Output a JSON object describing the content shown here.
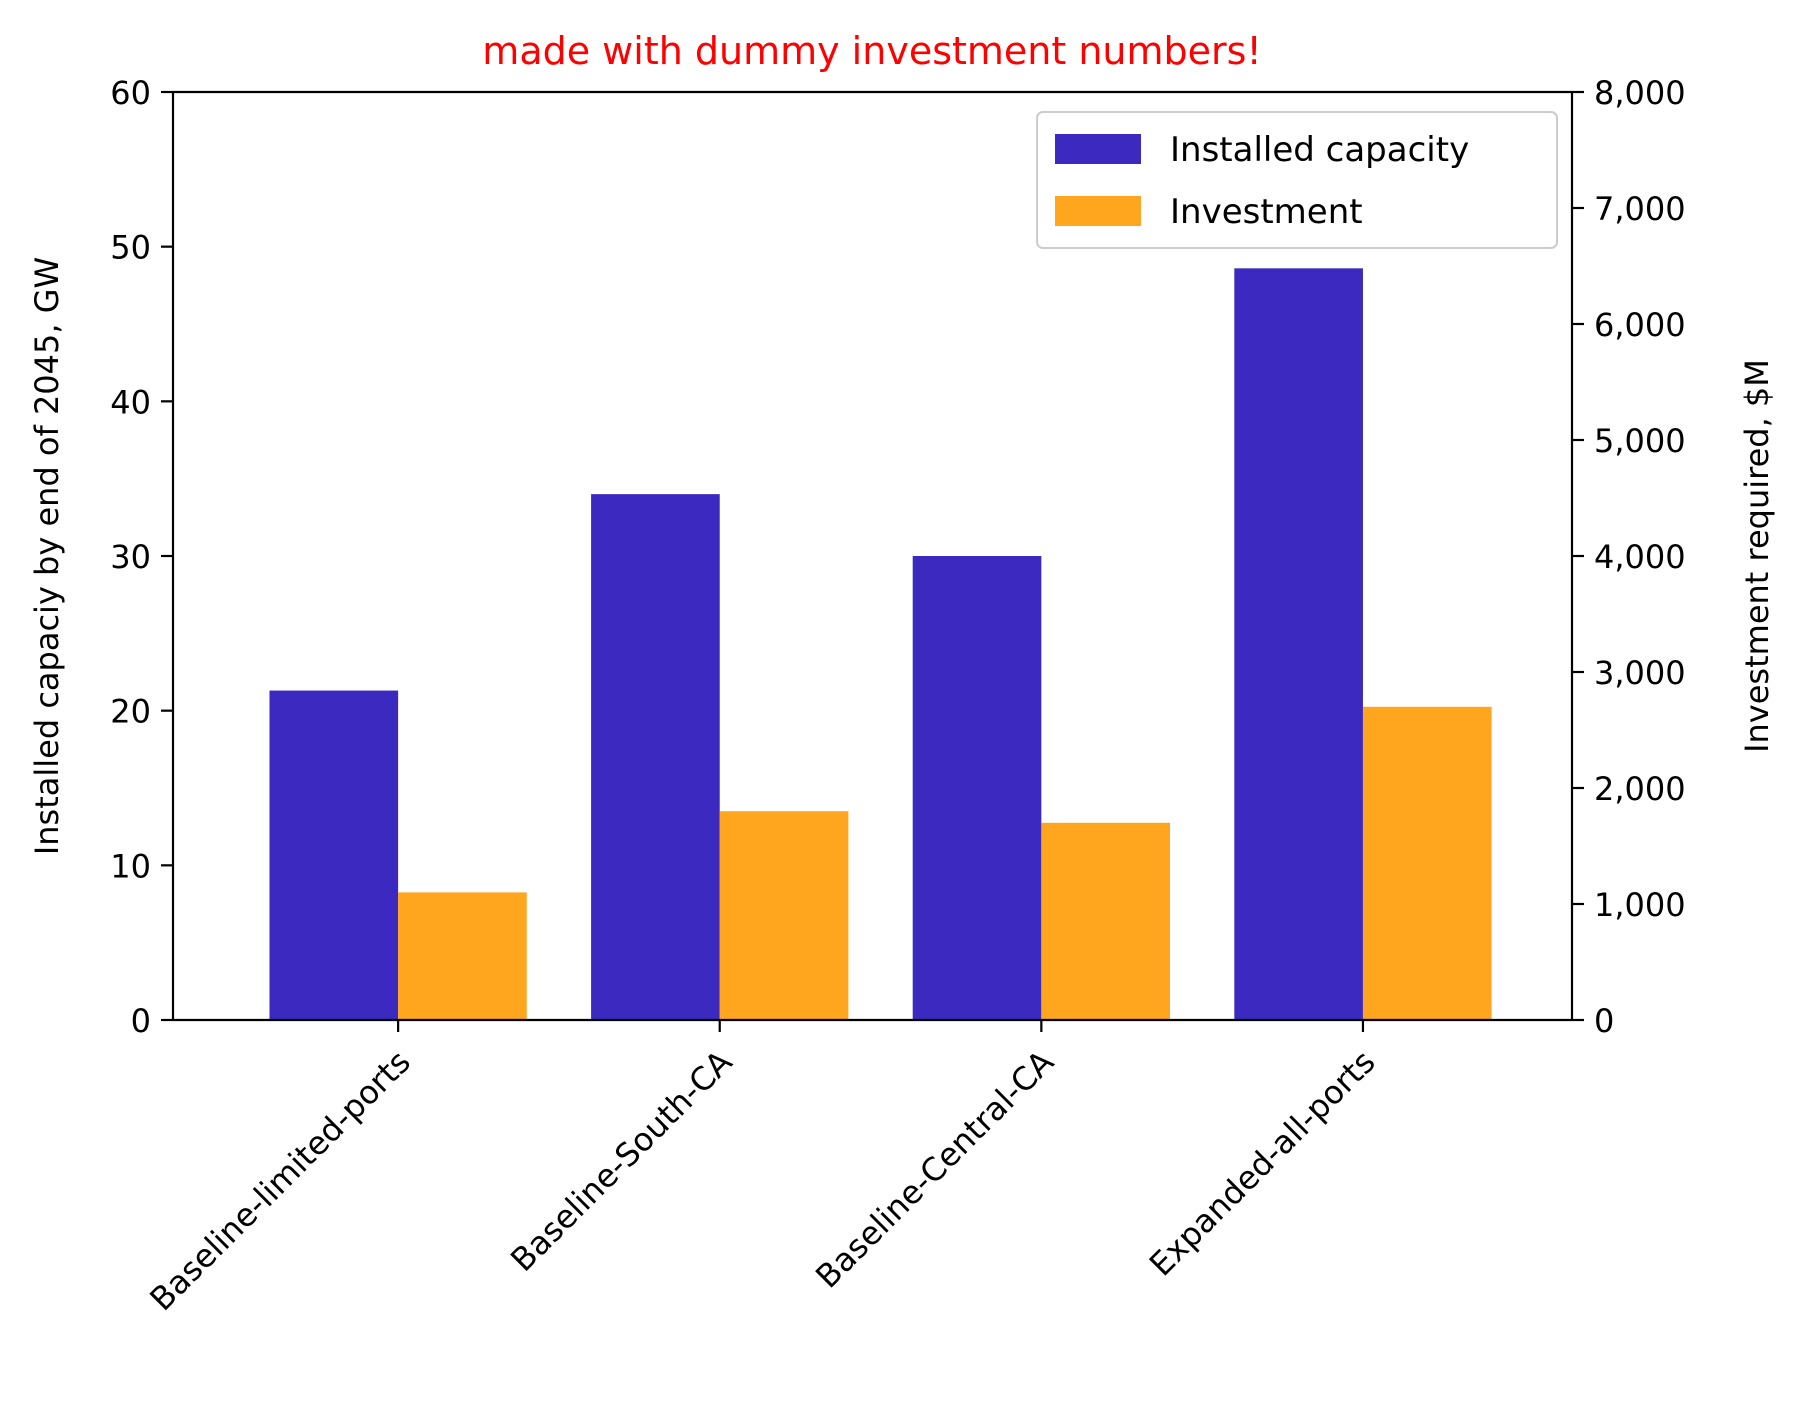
{
  "chart_data": {
    "type": "bar",
    "title": "made with dummy investment numbers!",
    "title_color": "#ff0000",
    "categories": [
      "Baseline-limited-ports",
      "Baseline-South-CA",
      "Baseline-Central-CA",
      "Expanded-all-ports"
    ],
    "series": [
      {
        "name": "Installed capacity",
        "axis": "left",
        "color": "#3c29bf",
        "values": [
          21.3,
          34.0,
          30.0,
          48.6
        ]
      },
      {
        "name": "Investment",
        "axis": "right",
        "color": "#ffa51e",
        "values": [
          1100,
          1800,
          1700,
          2700
        ]
      }
    ],
    "y_left": {
      "label": "Installed capaciy by end of 2045, GW",
      "lim": [
        0,
        60
      ],
      "ticks": [
        "0",
        "10",
        "20",
        "30",
        "40",
        "50",
        "60"
      ]
    },
    "y_right": {
      "label": "Investment required, $M",
      "lim": [
        0,
        8000
      ],
      "ticks": [
        "0",
        "1,000",
        "2,000",
        "3,000",
        "4,000",
        "5,000",
        "6,000",
        "7,000",
        "8,000"
      ]
    },
    "xlabel": "",
    "grid": false,
    "legend_position": "top-right"
  }
}
